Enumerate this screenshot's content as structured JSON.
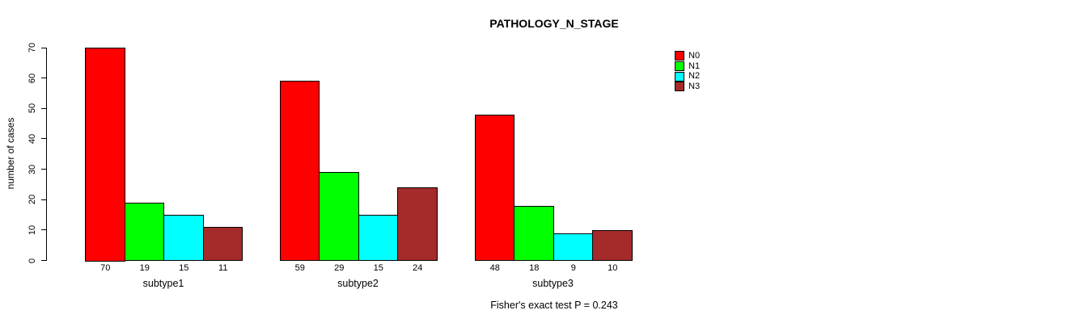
{
  "chart_data": {
    "type": "bar",
    "title": "PATHOLOGY_N_STAGE",
    "ylabel": "number of cases",
    "xlabel": "",
    "categories": [
      "subtype1",
      "subtype2",
      "subtype3"
    ],
    "series": [
      {
        "name": "N0",
        "color": "#FF0000",
        "values": [
          70,
          59,
          48
        ]
      },
      {
        "name": "N1",
        "color": "#00FF00",
        "values": [
          19,
          29,
          18
        ]
      },
      {
        "name": "N2",
        "color": "#00FFFF",
        "values": [
          15,
          15,
          9
        ]
      },
      {
        "name": "N3",
        "color": "#A52A2A",
        "values": [
          11,
          24,
          10
        ]
      }
    ],
    "ylim": [
      0,
      70
    ],
    "yticks": [
      0,
      10,
      20,
      30,
      40,
      50,
      60,
      70
    ],
    "grid": false,
    "legend_position": "right",
    "bar_value_labels": true,
    "footnote": "Fisher's exact test P = 0.243"
  },
  "colors": {
    "background": "#FFFFFF",
    "bar_border": "#000000",
    "text": "#000000"
  }
}
